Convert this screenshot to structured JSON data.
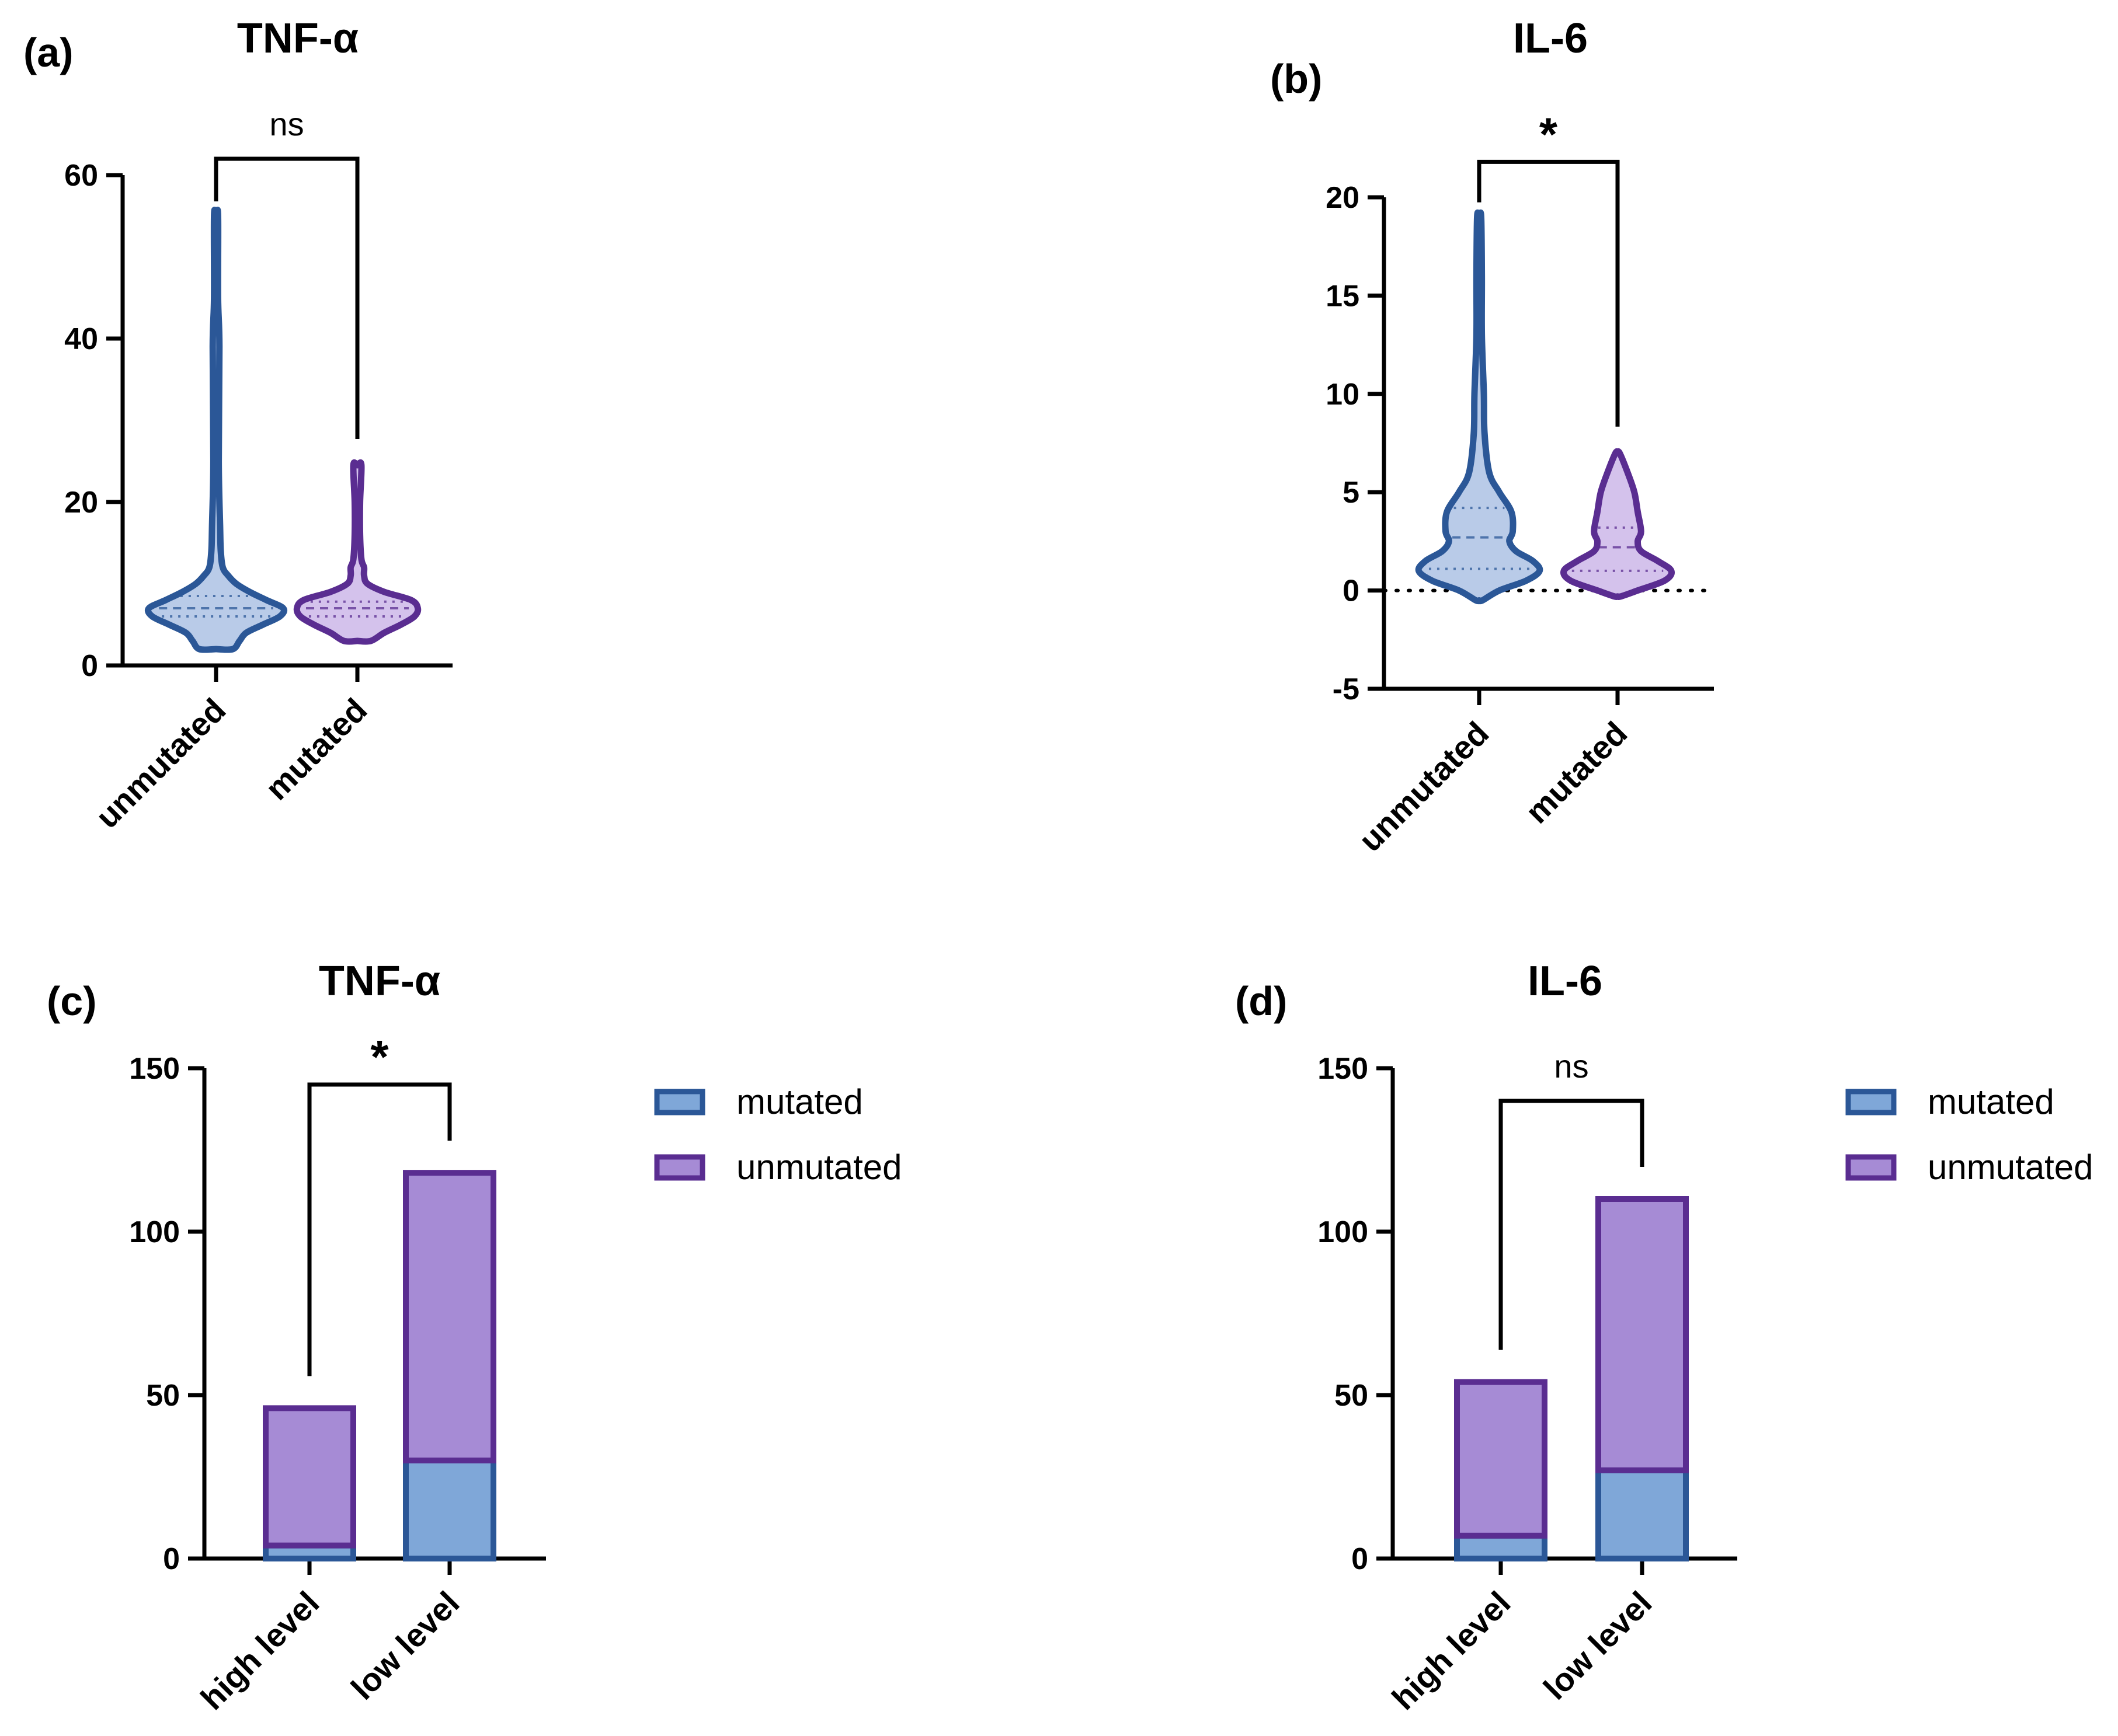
{
  "colors": {
    "blue_stroke": "#2b5797",
    "blue_fill": "#b9cbe8",
    "blue_bar": "#7fa7d8",
    "purple_stroke": "#5a2d91",
    "purple_fill": "#d4c2ec",
    "purple_bar": "#a68bd5",
    "axis": "#000000"
  },
  "chart_data": [
    {
      "id": "a",
      "type": "violin",
      "panel_label": "(a)",
      "title": "TNF-α",
      "categories": [
        "unmutated",
        "mutated"
      ],
      "ylim": [
        0,
        60
      ],
      "yticks": [
        0,
        20,
        40,
        60
      ],
      "zero_line": false,
      "series": [
        {
          "category": "unmutated",
          "min": 2,
          "max": 55,
          "median": 7,
          "q1": 6,
          "q3": 8.5,
          "density": [
            [
              2,
              0.25
            ],
            [
              3,
              0.35
            ],
            [
              4,
              0.45
            ],
            [
              5,
              0.7
            ],
            [
              6,
              0.95
            ],
            [
              7,
              1.0
            ],
            [
              8,
              0.75
            ],
            [
              9,
              0.5
            ],
            [
              10,
              0.3
            ],
            [
              11,
              0.18
            ],
            [
              12,
              0.1
            ],
            [
              14,
              0.07
            ],
            [
              17,
              0.06
            ],
            [
              25,
              0.04
            ],
            [
              39,
              0.05
            ],
            [
              45,
              0.03
            ],
            [
              55,
              0.03
            ]
          ]
        },
        {
          "category": "mutated",
          "min": 3,
          "max": 24.5,
          "median": 7,
          "q1": 6,
          "q3": 7.8,
          "density": [
            [
              3,
              0.2
            ],
            [
              4,
              0.4
            ],
            [
              5,
              0.65
            ],
            [
              6,
              0.85
            ],
            [
              7,
              0.9
            ],
            [
              8,
              0.8
            ],
            [
              9,
              0.4
            ],
            [
              10,
              0.15
            ],
            [
              11,
              0.1
            ],
            [
              12,
              0.1
            ],
            [
              13,
              0.06
            ],
            [
              16,
              0.04
            ],
            [
              20,
              0.04
            ],
            [
              24.5,
              0.06
            ]
          ]
        }
      ],
      "comparison": {
        "label": "ns",
        "from": "unmutated",
        "to": "mutated",
        "y": 62
      }
    },
    {
      "id": "b",
      "type": "violin",
      "panel_label": "(b)",
      "title": "IL-6",
      "categories": [
        "unmutated",
        "mutated"
      ],
      "ylim": [
        -5,
        20
      ],
      "yticks": [
        -5,
        0,
        5,
        10,
        15,
        20
      ],
      "zero_line": true,
      "series": [
        {
          "category": "unmutated",
          "min": -0.5,
          "max": 19,
          "median": 2.7,
          "q1": 1.1,
          "q3": 4.2,
          "density": [
            [
              -0.5,
              0.05
            ],
            [
              0,
              0.3
            ],
            [
              0.5,
              0.7
            ],
            [
              1,
              0.9
            ],
            [
              1.5,
              0.8
            ],
            [
              2,
              0.55
            ],
            [
              2.5,
              0.45
            ],
            [
              3,
              0.5
            ],
            [
              4,
              0.48
            ],
            [
              5,
              0.3
            ],
            [
              6,
              0.15
            ],
            [
              8,
              0.08
            ],
            [
              10,
              0.07
            ],
            [
              13,
              0.04
            ],
            [
              16,
              0.04
            ],
            [
              19,
              0.03
            ]
          ]
        },
        {
          "category": "mutated",
          "min": -0.3,
          "max": 7,
          "median": 2.2,
          "q1": 1.0,
          "q3": 3.2,
          "density": [
            [
              -0.3,
              0.05
            ],
            [
              0,
              0.3
            ],
            [
              0.5,
              0.7
            ],
            [
              1,
              0.8
            ],
            [
              1.5,
              0.6
            ],
            [
              2,
              0.35
            ],
            [
              2.5,
              0.3
            ],
            [
              3,
              0.35
            ],
            [
              4,
              0.3
            ],
            [
              5,
              0.25
            ],
            [
              6,
              0.15
            ],
            [
              7,
              0.03
            ]
          ]
        }
      ],
      "comparison": {
        "label": "*",
        "from": "unmutated",
        "to": "mutated",
        "y": 21.8
      }
    },
    {
      "id": "c",
      "type": "stacked-bar",
      "panel_label": "(c)",
      "title": "TNF-α",
      "categories": [
        "high level",
        "low level"
      ],
      "ylim": [
        0,
        150
      ],
      "yticks": [
        0,
        50,
        100,
        150
      ],
      "series": [
        {
          "name": "mutated",
          "values": [
            4,
            30
          ]
        },
        {
          "name": "unmutated",
          "values": [
            42,
            88
          ]
        }
      ],
      "legend": [
        "mutated",
        "unmutated"
      ],
      "legend_position": "right",
      "comparison": {
        "label": "*",
        "from": "high level",
        "to": "low level",
        "y": 145
      }
    },
    {
      "id": "d",
      "type": "stacked-bar",
      "panel_label": "(d)",
      "title": "IL-6",
      "categories": [
        "high level",
        "low level"
      ],
      "ylim": [
        0,
        150
      ],
      "yticks": [
        0,
        50,
        100,
        150
      ],
      "series": [
        {
          "name": "mutated",
          "values": [
            7,
            27
          ]
        },
        {
          "name": "unmutated",
          "values": [
            47,
            83
          ]
        }
      ],
      "legend": [
        "mutated",
        "unmutated"
      ],
      "legend_position": "right",
      "comparison": {
        "label": "ns",
        "from": "high level",
        "to": "low level",
        "y": 140
      }
    }
  ]
}
